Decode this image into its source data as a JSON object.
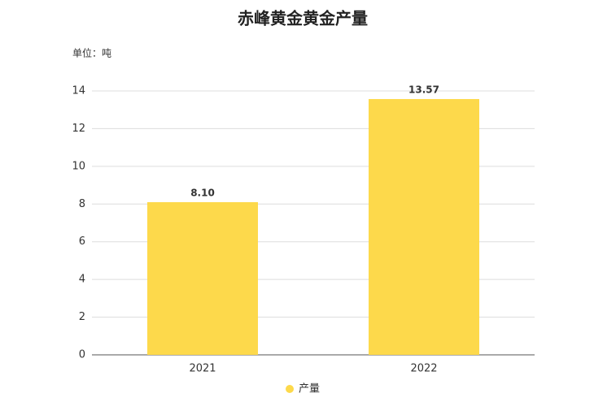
{
  "chart_data": {
    "type": "bar",
    "title": "赤峰黄金黄金产量",
    "unit_label": "单位：吨",
    "categories": [
      "2021",
      "2022"
    ],
    "series": [
      {
        "name": "产量",
        "color": "#fdd94b",
        "values": [
          8.1,
          13.57
        ],
        "value_labels": [
          "8.10",
          "13.57"
        ]
      }
    ],
    "ylim": [
      0,
      14
    ],
    "yticks": [
      0,
      2,
      4,
      6,
      8,
      10,
      12,
      14
    ],
    "grid": true
  }
}
